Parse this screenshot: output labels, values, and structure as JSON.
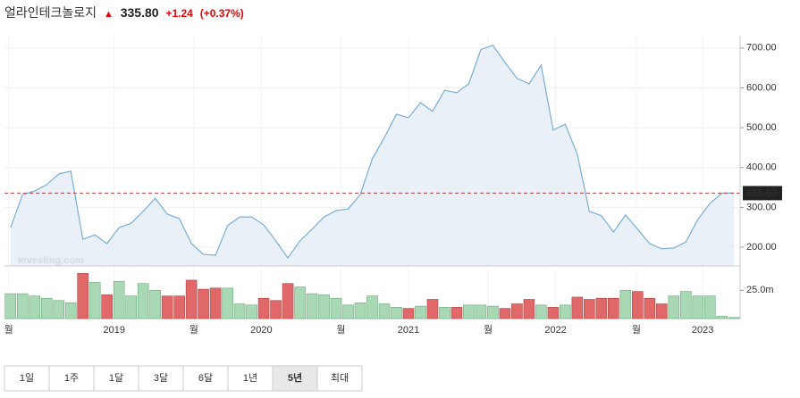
{
  "header": {
    "title": "얼라인테크놀로지",
    "change": "+1.24",
    "change_percent": "(+0.37%)"
  },
  "watermark": "Investing.com",
  "chart_data": {
    "type": "area",
    "last_price": {
      "value": 335.8,
      "label": "335.80"
    },
    "color": "#7aaed6",
    "fill": "#e3ecf6",
    "xlim": [
      -0.5,
      60.5
    ],
    "xticks": [
      {
        "value": -0.15,
        "label": "월"
      },
      {
        "value": 8.6,
        "label": "2019"
      },
      {
        "value": 15.2,
        "label": "월"
      },
      {
        "value": 20.8,
        "label": "2020"
      },
      {
        "value": 27.4,
        "label": "월"
      },
      {
        "value": 33.0,
        "label": "2021"
      },
      {
        "value": 39.6,
        "label": "월"
      },
      {
        "value": 45.2,
        "label": "2022"
      },
      {
        "value": 51.9,
        "label": "월"
      },
      {
        "value": 57.4,
        "label": "2023"
      }
    ],
    "ylim": [
      153,
      731
    ],
    "yticks": [
      {
        "value": 200,
        "label": "200.00"
      },
      {
        "value": 300,
        "label": "300.00"
      },
      {
        "value": 400,
        "label": "400.00"
      },
      {
        "value": 500,
        "label": "500.00"
      },
      {
        "value": 600,
        "label": "600.00"
      },
      {
        "value": 700,
        "label": "700.00"
      }
    ],
    "values": [
      249,
      332,
      341,
      357,
      384,
      391,
      220,
      231,
      209,
      249,
      260,
      290,
      323,
      283,
      272,
      209,
      182,
      180,
      254,
      276,
      276,
      256,
      216,
      173,
      216,
      245,
      276,
      292,
      296,
      332,
      422,
      475,
      534,
      525,
      563,
      541,
      594,
      588,
      610,
      696,
      707,
      664,
      624,
      610,
      657,
      494,
      509,
      433,
      290,
      279,
      238,
      281,
      245,
      209,
      196,
      198,
      213,
      270,
      310,
      335.8,
      335.8
    ],
    "volume": {
      "values": [
        22,
        22,
        20,
        18,
        16,
        14,
        40,
        32,
        21,
        33,
        20,
        31,
        25,
        20,
        20,
        34,
        26,
        27,
        27,
        13,
        12,
        18,
        16,
        31,
        28,
        22,
        21,
        18,
        12,
        14,
        20,
        13,
        10,
        9,
        11,
        17,
        10,
        10,
        12,
        12,
        11,
        9,
        13,
        17,
        12,
        10,
        12,
        19,
        17,
        18,
        18,
        25,
        24,
        18,
        13,
        20,
        24,
        20,
        20,
        2,
        1
      ],
      "ylim": [
        0,
        45
      ],
      "yticks": [
        {
          "value": 25,
          "label": "25.0m"
        }
      ],
      "up_color": "#a8d8b4",
      "down_color": "#e06868"
    }
  },
  "range_buttons": [
    "1일",
    "1주",
    "1달",
    "3달",
    "6달",
    "1년",
    "5년",
    "최대"
  ],
  "selected_range": 6
}
